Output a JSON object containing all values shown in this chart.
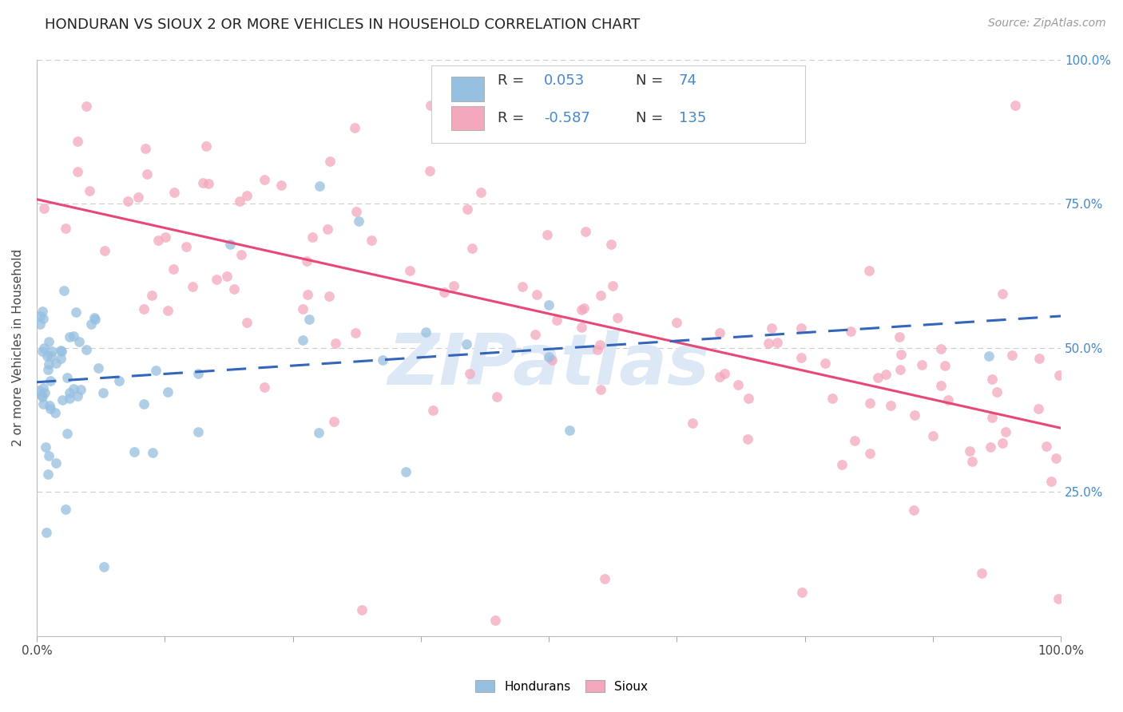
{
  "title": "HONDURAN VS SIOUX 2 OR MORE VEHICLES IN HOUSEHOLD CORRELATION CHART",
  "source": "Source: ZipAtlas.com",
  "ylabel": "2 or more Vehicles in Household",
  "xlim": [
    0.0,
    1.0
  ],
  "ylim": [
    0.0,
    1.0
  ],
  "honduran_color": "#96c0e0",
  "sioux_color": "#f4a8bc",
  "honduran_line_color": "#3366bb",
  "sioux_line_color": "#e84878",
  "honduran_R": 0.053,
  "honduran_N": 74,
  "sioux_R": -0.587,
  "sioux_N": 135,
  "background_color": "#ffffff",
  "grid_color": "#cccccc",
  "watermark_color": "#dce8f5",
  "right_tick_color": "#4488cc",
  "title_fontsize": 13,
  "axis_label_fontsize": 11,
  "legend_fontsize": 13,
  "source_fontsize": 10,
  "marker_size": 85,
  "marker_alpha": 0.75
}
